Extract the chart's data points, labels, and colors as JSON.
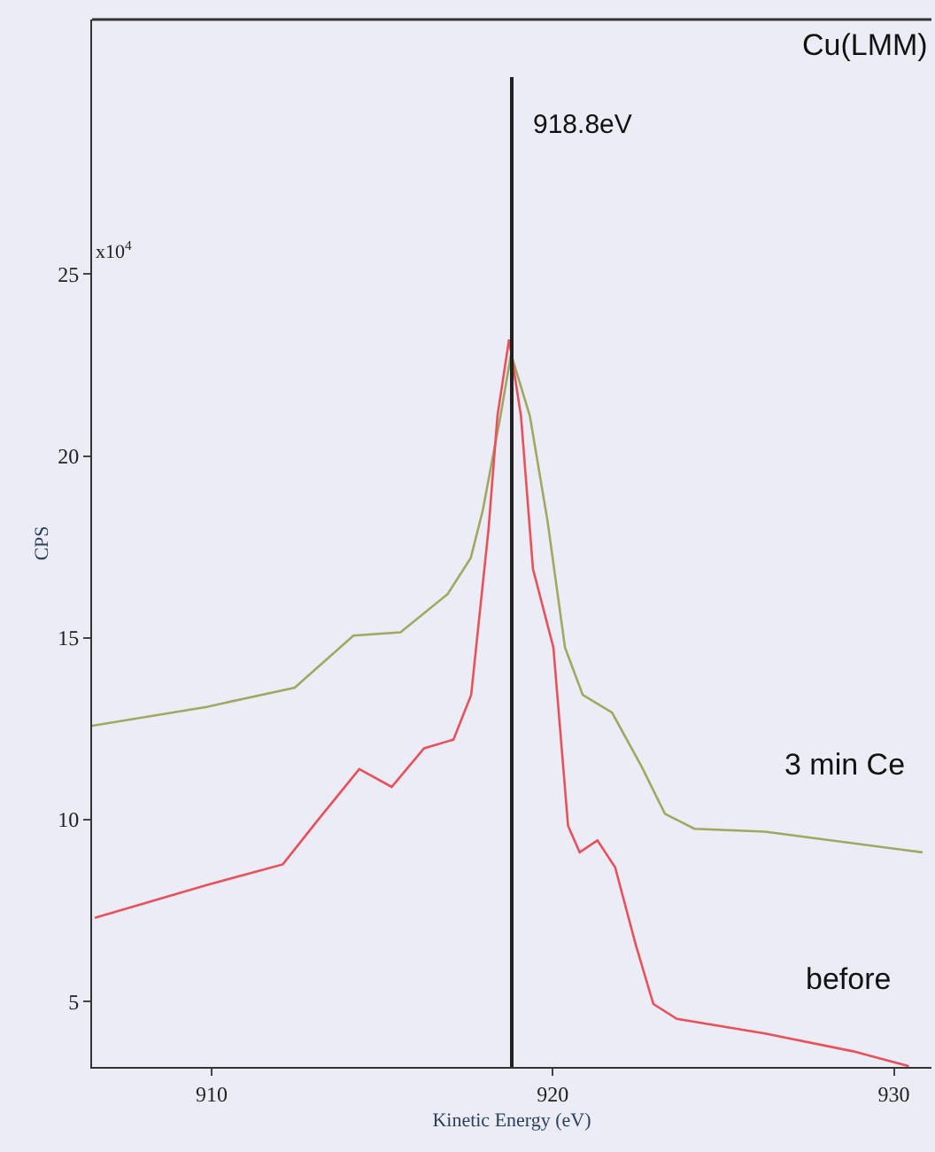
{
  "chart_data": {
    "type": "line",
    "xlabel": "Kinetic Energy (eV)",
    "ylabel": "CPS",
    "annotations": [
      "Cu(LMM)",
      "x10$^{4}$"
    ],
    "xlim": [
      906.5,
      931.1
    ],
    "xticks": [
      910,
      920,
      930
    ],
    "ylim": [
      3.2,
      32
    ],
    "yticks": [
      5,
      10,
      15,
      20,
      25
    ],
    "ref_lines": [
      {
        "axis": "x",
        "value": 918.8,
        "label": "918.8eV",
        "color": "#202020"
      }
    ],
    "grid": false,
    "legend": false,
    "marker": "none",
    "line_style": "solid",
    "series": [
      {
        "name": "3 min Ce",
        "color": "#a0a860",
        "x": [
          906.5,
          909.86,
          912.44,
          914.16,
          915.54,
          916.92,
          917.6,
          917.95,
          918.47,
          918.78,
          919.33,
          919.85,
          920.36,
          920.88,
          921.74,
          922.6,
          923.29,
          924.15,
          926.22,
          930.84
        ],
        "values": [
          12.58,
          13.1,
          13.63,
          15.06,
          15.15,
          16.2,
          17.2,
          18.5,
          21.1,
          22.8,
          21.1,
          18.2,
          14.73,
          13.43,
          12.94,
          11.47,
          10.16,
          9.75,
          9.67,
          9.1
        ]
      },
      {
        "name": "before",
        "color": "#e8505a",
        "x": [
          906.58,
          909.86,
          912.09,
          913.13,
          914.33,
          915.28,
          916.23,
          917.09,
          917.61,
          918.12,
          918.38,
          918.72,
          919.07,
          919.42,
          920.02,
          920.45,
          920.79,
          921.31,
          921.83,
          922.43,
          922.95,
          923.64,
          926.22,
          928.8,
          930.44
        ],
        "values": [
          7.3,
          8.2,
          8.77,
          10.0,
          11.39,
          10.9,
          11.96,
          12.2,
          13.43,
          18.0,
          21.1,
          23.2,
          21.1,
          16.9,
          14.73,
          9.83,
          9.1,
          9.43,
          8.69,
          6.57,
          4.93,
          4.52,
          4.12,
          3.63,
          3.22
        ]
      }
    ]
  }
}
